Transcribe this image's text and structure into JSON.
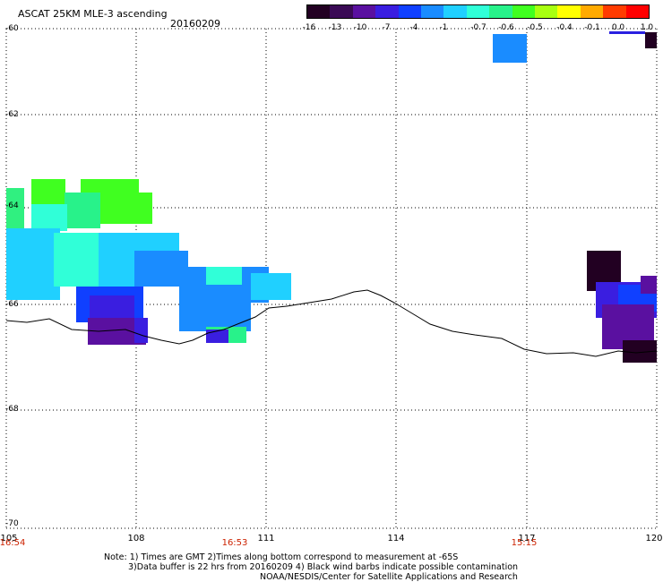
{
  "header": {
    "title": "ASCAT 25KM MLE-3 ascending",
    "date": "20160209"
  },
  "colorbar": {
    "labels": [
      "-16",
      "-13",
      "-10",
      "-7",
      "-4",
      "-1",
      "-0.7",
      "-0.6",
      "-0.5",
      "-0.4",
      "-0.1",
      "0.0",
      "1.0"
    ],
    "colors": [
      "#220022",
      "#3a0a55",
      "#5a10a0",
      "#3a1ee0",
      "#1040ff",
      "#1a8cff",
      "#20d0ff",
      "#30ffd8",
      "#28f28a",
      "#40ff20",
      "#a8ff10",
      "#ffff00",
      "#ffaa00",
      "#ff3c00",
      "#ff0000"
    ]
  },
  "axes": {
    "y_labels": [
      "-60",
      "-62",
      "-64",
      "-66",
      "-68",
      "-70"
    ],
    "x_labels": [
      "105",
      "108",
      "111",
      "114",
      "117",
      "120"
    ],
    "time_labels": [
      "16:54",
      "16:53",
      "15:15"
    ]
  },
  "chart_data": {
    "type": "heatmap",
    "xlabel": "",
    "ylabel": "",
    "xlim": [
      105,
      120
    ],
    "ylim": [
      -70,
      -60
    ],
    "colorscale_labels": [
      "-16",
      "-13",
      "-10",
      "-7",
      "-4",
      "-1",
      "-0.7",
      "-0.6",
      "-0.5",
      "-0.4",
      "-0.1",
      "0.0",
      "1.0"
    ]
  },
  "notes": [
    "Note: 1) Times are GMT 2)Times along bottom correspond to measurement at -65S",
    "3)Data buffer is 22 hrs from 20160209 4) Black wind barbs indicate possible contamination",
    "NOAA/NESDIS/Center for Satellite Applications and Research"
  ]
}
